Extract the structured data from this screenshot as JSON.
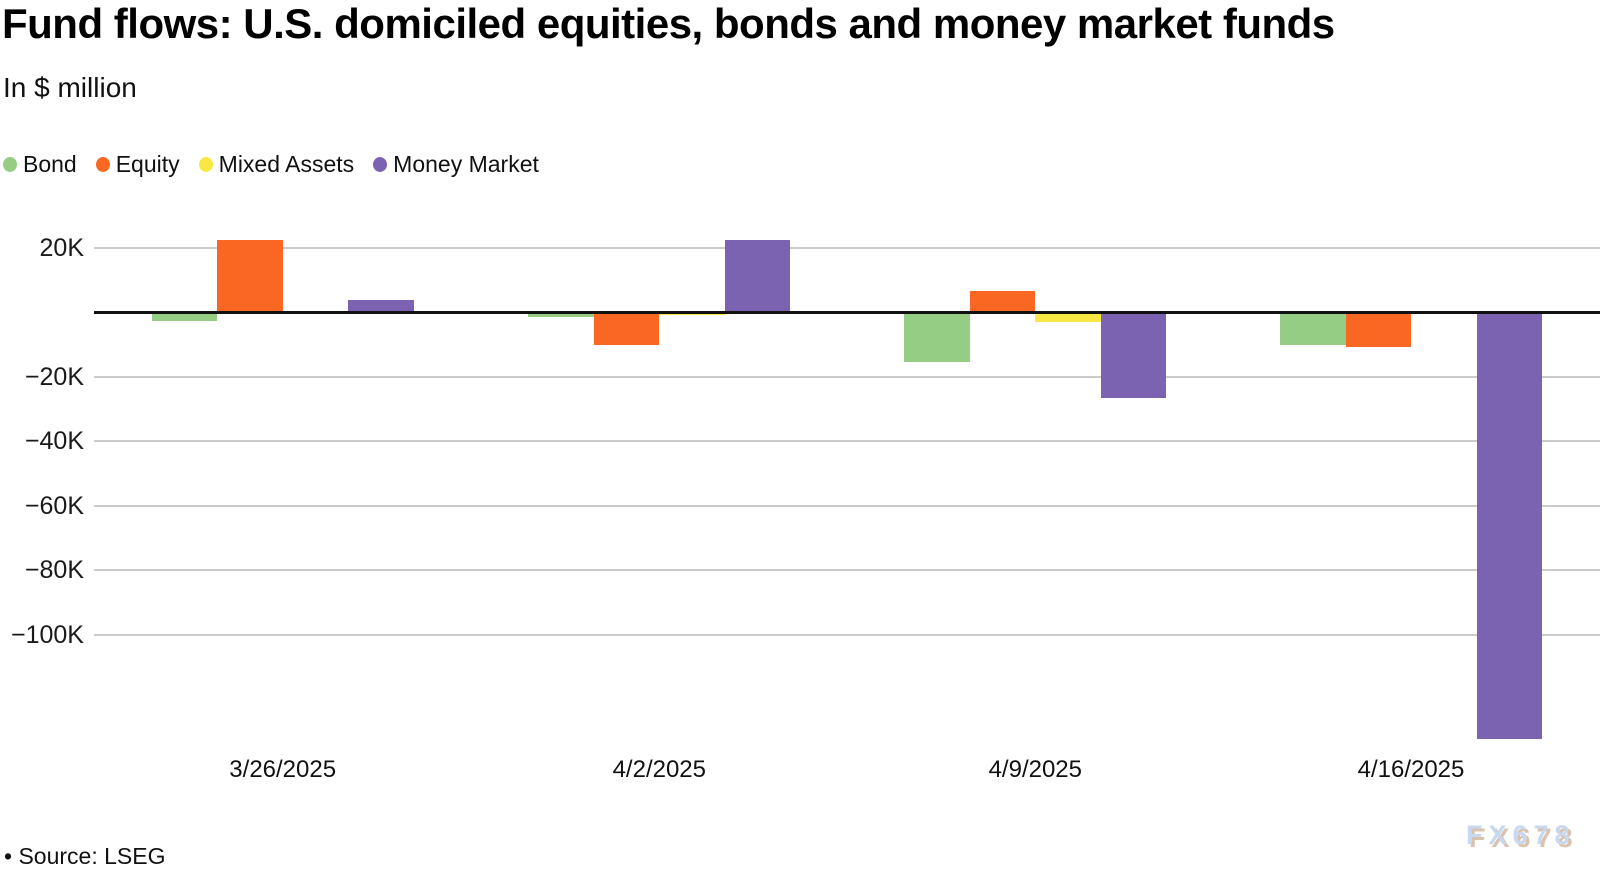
{
  "page": {
    "title": "Fund flows: U.S. domiciled equities, bonds and money market funds",
    "subtitle": "In $ million",
    "source": "• Source: LSEG",
    "watermark": "FX678"
  },
  "legend": [
    {
      "label": "Bond",
      "color": "#94cd83",
      "icon": "green-dot-icon"
    },
    {
      "label": "Equity",
      "color": "#fa6722",
      "icon": "orange-dot-icon"
    },
    {
      "label": "Mixed Assets",
      "color": "#f9e843",
      "icon": "yellow-dot-icon"
    },
    {
      "label": "Money Market",
      "color": "#7c63b2",
      "icon": "purple-dot-icon"
    }
  ],
  "chart_data": {
    "type": "bar",
    "title": "Fund flows: U.S. domiciled equities, bonds and money market funds",
    "subtitle": "In $ million",
    "unit": "USD million",
    "categories": [
      "3/26/2025",
      "4/2/2025",
      "4/9/2025",
      "4/16/2025"
    ],
    "series": [
      {
        "name": "Bond",
        "color": "#94cd83",
        "values": [
          -2900,
          -1600,
          -15500,
          -10200
        ]
      },
      {
        "name": "Equity",
        "color": "#fa6722",
        "values": [
          22400,
          -10200,
          6500,
          -10900
        ]
      },
      {
        "name": "Mixed Assets",
        "color": "#f9e843",
        "values": [
          -600,
          -900,
          -3200,
          0
        ]
      },
      {
        "name": "Money Market",
        "color": "#7c63b2",
        "values": [
          3600,
          22200,
          -26700,
          -132400
        ]
      }
    ],
    "y_axis": {
      "tick_labels": [
        "20K",
        "−20K",
        "−40K",
        "−60K",
        "−80K",
        "−100K"
      ],
      "tick_values": [
        20000,
        -20000,
        -40000,
        -60000,
        -80000,
        -100000
      ],
      "zero_line": true,
      "range": [
        -137000,
        26000
      ],
      "grid": true
    },
    "legend_position": "top-left",
    "source": "LSEG",
    "watermark": "FX678"
  }
}
